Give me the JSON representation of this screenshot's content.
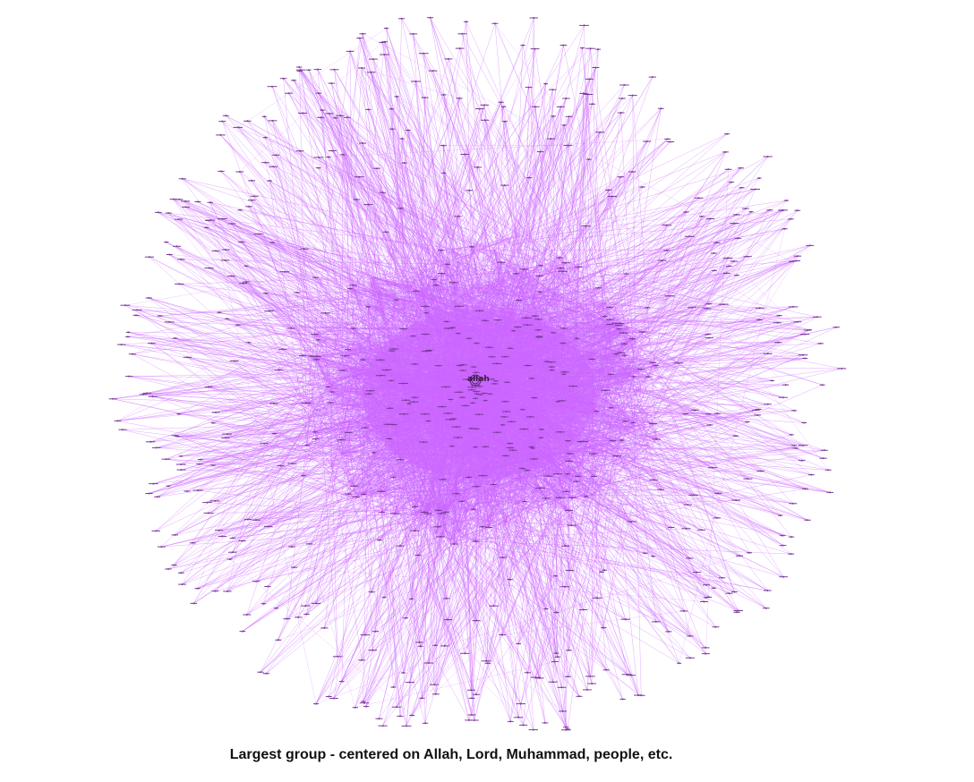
{
  "caption": "Largest group - centered on Allah, Lord, Muhammad, people, etc.",
  "hub": {
    "label": "allah"
  },
  "colors": {
    "background": "#ffffff",
    "edge": "#cc66ff",
    "node": "#7a3d99",
    "label": "#3a1a44"
  }
}
